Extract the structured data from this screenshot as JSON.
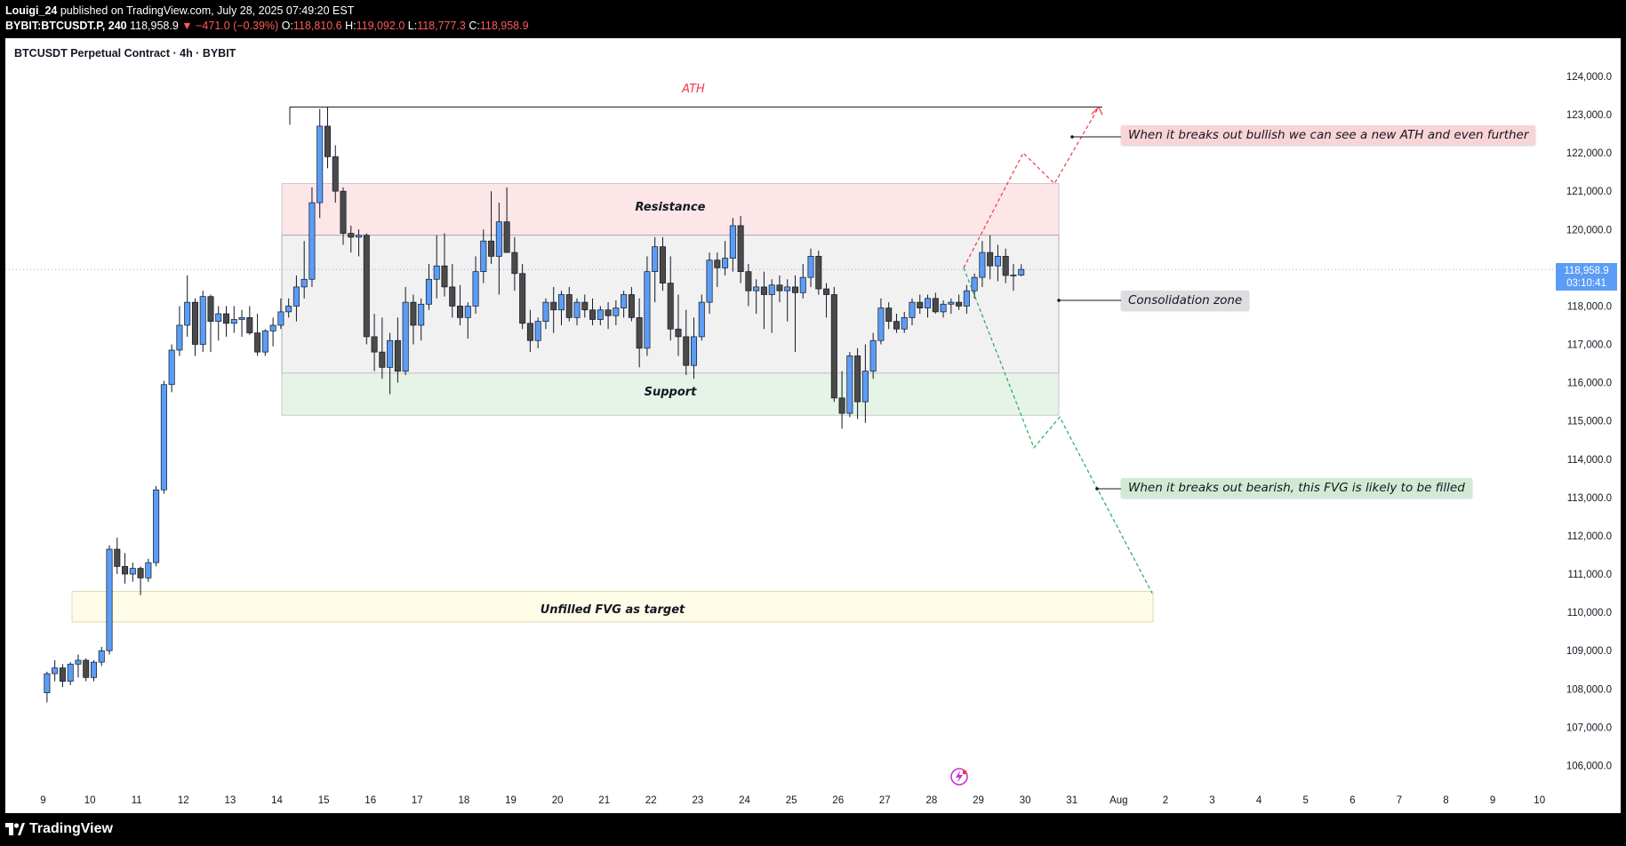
{
  "header": {
    "publisher": "Louigi_24",
    "published_text": "published on TradingView.com, July 28, 2025 07:49:20 EST",
    "symbol": "BYBIT:BTCUSDT.P, 240",
    "last": "118,958.9",
    "change": "▼ −471.0 (−0.39%)",
    "o_label": "O:",
    "o_value": "118,810.6",
    "h_label": "H:",
    "h_value": "119,092.0",
    "l_label": "L:",
    "l_value": "118,777.3",
    "c_label": "C:",
    "c_value": "118,958.9"
  },
  "chart_title": "BTCUSDT Perpetual Contract · 4h · BYBIT",
  "price_tag": {
    "price": "118,958.9",
    "countdown": "03:10:41"
  },
  "annotations": {
    "ath": "ATH",
    "resistance": "Resistance",
    "support": "Support",
    "fvg": "Unfilled FVG as target",
    "bullish_note": "When it breaks out bullish we can see a new ATH and even further",
    "consolidation_note": "Consolidation zone",
    "bearish_note": "When it breaks out bearish, this FVG is likely to be filled"
  },
  "footer": {
    "brand": "TradingView"
  },
  "colors": {
    "up": "#5b9cf6",
    "down": "#4a4a4a",
    "resistance_zone": "#fde6e7",
    "consolidation_zone": "#f1f1f1",
    "support_zone": "#e5f4e7",
    "fvg_zone": "#fefbe6",
    "bull_path": "#f23645",
    "bear_path": "#22ab5c"
  },
  "chart_data": {
    "type": "candlestick",
    "title": "BTCUSDT Perpetual Contract · 4h · BYBIT",
    "x_ticks": [
      "9",
      "10",
      "11",
      "12",
      "13",
      "14",
      "15",
      "16",
      "17",
      "18",
      "19",
      "20",
      "21",
      "22",
      "23",
      "24",
      "25",
      "26",
      "27",
      "28",
      "29",
      "30",
      "31",
      "Aug",
      "2",
      "3",
      "4",
      "5",
      "6",
      "7",
      "8",
      "9",
      "10"
    ],
    "y_ticks": [
      "106,000.0",
      "107,000.0",
      "108,000.0",
      "109,000.0",
      "110,000.0",
      "111,000.0",
      "112,000.0",
      "113,000.0",
      "114,000.0",
      "115,000.0",
      "116,000.0",
      "117,000.0",
      "118,000.0",
      "119,000.0",
      "120,000.0",
      "121,000.0",
      "122,000.0",
      "123,000.0",
      "124,000.0"
    ],
    "y_tick_values": [
      106000,
      107000,
      108000,
      109000,
      110000,
      111000,
      112000,
      113000,
      114000,
      115000,
      116000,
      117000,
      118000,
      119000,
      120000,
      121000,
      122000,
      123000,
      124000
    ],
    "ylim": [
      105500,
      124300
    ],
    "candles_start_day": "9",
    "candles_per_day": 6,
    "candles": [
      [
        107900,
        108450,
        107650,
        108400
      ],
      [
        108400,
        108750,
        108200,
        108550
      ],
      [
        108550,
        108650,
        108050,
        108200
      ],
      [
        108200,
        108700,
        108100,
        108650
      ],
      [
        108650,
        108900,
        108300,
        108750
      ],
      [
        108750,
        108800,
        108200,
        108300
      ],
      [
        108300,
        108750,
        108200,
        108700
      ],
      [
        108700,
        109100,
        108600,
        109000
      ],
      [
        109000,
        111750,
        108900,
        111650
      ],
      [
        111650,
        111950,
        111000,
        111200
      ],
      [
        111200,
        111550,
        110750,
        111000
      ],
      [
        111000,
        111300,
        110800,
        111150
      ],
      [
        111150,
        111200,
        110450,
        110900
      ],
      [
        110900,
        111400,
        110800,
        111300
      ],
      [
        111300,
        113300,
        111200,
        113200
      ],
      [
        113200,
        116050,
        113100,
        115950
      ],
      [
        115950,
        117000,
        115750,
        116850
      ],
      [
        116850,
        118000,
        116700,
        117500
      ],
      [
        117500,
        118800,
        117200,
        118100
      ],
      [
        118100,
        118200,
        116700,
        117000
      ],
      [
        117000,
        118400,
        116800,
        118250
      ],
      [
        118250,
        118300,
        116800,
        117600
      ],
      [
        117600,
        118000,
        117100,
        117800
      ],
      [
        117800,
        118000,
        117200,
        117550
      ],
      [
        117550,
        118000,
        117300,
        117650
      ],
      [
        117650,
        117900,
        117200,
        117700
      ],
      [
        117700,
        118000,
        117250,
        117300
      ],
      [
        117300,
        117800,
        116700,
        116800
      ],
      [
        116800,
        117400,
        116700,
        117350
      ],
      [
        117350,
        117700,
        116950,
        117500
      ],
      [
        117500,
        118200,
        117400,
        117850
      ],
      [
        117850,
        118200,
        117700,
        118000
      ],
      [
        118000,
        118800,
        117600,
        118500
      ],
      [
        118500,
        119700,
        118200,
        118700
      ],
      [
        118700,
        121100,
        118500,
        120700
      ],
      [
        120700,
        123150,
        120300,
        122700
      ],
      [
        122700,
        123200,
        121600,
        121900
      ],
      [
        121900,
        122200,
        120700,
        121000
      ],
      [
        121000,
        121100,
        119600,
        119900
      ],
      [
        119900,
        120100,
        119400,
        119800
      ],
      [
        119800,
        120000,
        119300,
        119850
      ],
      [
        119850,
        119900,
        117000,
        117200
      ],
      [
        117200,
        117800,
        116300,
        116800
      ],
      [
        116800,
        117700,
        116100,
        116400
      ],
      [
        116400,
        117300,
        115700,
        117100
      ],
      [
        117100,
        117700,
        116000,
        116300
      ],
      [
        116300,
        118500,
        116200,
        118100
      ],
      [
        118100,
        118300,
        117000,
        117500
      ],
      [
        117500,
        118200,
        117100,
        118050
      ],
      [
        118050,
        119100,
        117900,
        118700
      ],
      [
        118700,
        119850,
        118200,
        119050
      ],
      [
        119050,
        119900,
        118250,
        118500
      ],
      [
        118500,
        119100,
        117700,
        118000
      ],
      [
        118000,
        118550,
        117500,
        117700
      ],
      [
        117700,
        118100,
        117150,
        118000
      ],
      [
        118000,
        119300,
        117800,
        118900
      ],
      [
        118900,
        120000,
        118600,
        119700
      ],
      [
        119700,
        121000,
        119100,
        119300
      ],
      [
        119300,
        120700,
        118300,
        120200
      ],
      [
        120200,
        121100,
        119500,
        119400
      ],
      [
        119400,
        119800,
        118400,
        118850
      ],
      [
        118850,
        119100,
        117400,
        117550
      ],
      [
        117550,
        117900,
        116800,
        117100
      ],
      [
        117100,
        117700,
        116900,
        117600
      ],
      [
        117600,
        118200,
        117400,
        118100
      ],
      [
        118100,
        118500,
        117300,
        117900
      ],
      [
        117900,
        118400,
        117500,
        118300
      ],
      [
        118300,
        118500,
        117600,
        117700
      ],
      [
        117700,
        118200,
        117500,
        118100
      ],
      [
        118100,
        118300,
        117700,
        117900
      ],
      [
        117900,
        118200,
        117500,
        117650
      ],
      [
        117650,
        118000,
        117500,
        117900
      ],
      [
        117900,
        118100,
        117400,
        117750
      ],
      [
        117750,
        118150,
        117500,
        117950
      ],
      [
        117950,
        118400,
        117700,
        118300
      ],
      [
        118300,
        118500,
        117600,
        117700
      ],
      [
        117700,
        118200,
        116400,
        116900
      ],
      [
        116900,
        119300,
        116700,
        118900
      ],
      [
        118900,
        119800,
        118100,
        119550
      ],
      [
        119550,
        119800,
        118400,
        118600
      ],
      [
        118600,
        119300,
        117100,
        117400
      ],
      [
        117400,
        118300,
        116700,
        117200
      ],
      [
        117200,
        117900,
        116200,
        116450
      ],
      [
        116450,
        117700,
        116100,
        117200
      ],
      [
        117200,
        118300,
        117100,
        118100
      ],
      [
        118100,
        119400,
        117800,
        119200
      ],
      [
        119200,
        119400,
        118500,
        119000
      ],
      [
        119000,
        119700,
        118800,
        119250
      ],
      [
        119250,
        120300,
        118900,
        120100
      ],
      [
        120100,
        120350,
        118600,
        118900
      ],
      [
        118900,
        119100,
        118000,
        118400
      ],
      [
        118400,
        118700,
        117800,
        118500
      ],
      [
        118500,
        118900,
        117400,
        118300
      ],
      [
        118300,
        118700,
        117300,
        118550
      ],
      [
        118550,
        118800,
        118100,
        118400
      ],
      [
        118400,
        118700,
        117600,
        118500
      ],
      [
        118500,
        118800,
        116800,
        118350
      ],
      [
        118350,
        119100,
        118200,
        118750
      ],
      [
        118750,
        119500,
        118500,
        119300
      ],
      [
        119300,
        119450,
        118300,
        118450
      ],
      [
        118450,
        118600,
        117700,
        118300
      ],
      [
        118300,
        118500,
        115500,
        115600
      ],
      [
        115600,
        116300,
        114800,
        115200
      ],
      [
        115200,
        116800,
        115100,
        116700
      ],
      [
        116700,
        116900,
        115050,
        115500
      ],
      [
        115500,
        117000,
        114950,
        116300
      ],
      [
        116300,
        117300,
        116100,
        117100
      ],
      [
        117100,
        118200,
        117000,
        117950
      ],
      [
        117950,
        118100,
        117400,
        117600
      ],
      [
        117600,
        117800,
        117300,
        117400
      ],
      [
        117400,
        117850,
        117300,
        117700
      ],
      [
        117700,
        118200,
        117500,
        118100
      ],
      [
        118100,
        118300,
        117800,
        117950
      ],
      [
        117950,
        118300,
        117700,
        118200
      ],
      [
        118200,
        118350,
        117800,
        117850
      ],
      [
        117850,
        118150,
        117700,
        118050
      ],
      [
        118050,
        118200,
        117800,
        118100
      ],
      [
        118100,
        118300,
        117900,
        118000
      ],
      [
        118000,
        118550,
        117800,
        118400
      ],
      [
        118400,
        118850,
        118200,
        118750
      ],
      [
        118750,
        119700,
        118500,
        119400
      ],
      [
        119400,
        119850,
        118700,
        119050
      ],
      [
        119050,
        119600,
        118650,
        119300
      ],
      [
        119300,
        119500,
        118600,
        118800
      ],
      [
        118800,
        119100,
        118400,
        118810
      ],
      [
        118810.6,
        119092,
        118777.3,
        118958.9
      ]
    ],
    "annotations": {
      "ath_level": 123200,
      "resistance_zone": [
        119850,
        121200
      ],
      "consolidation_zone": [
        116250,
        119850
      ],
      "support_zone": [
        115150,
        116250
      ],
      "fvg_zone": [
        109750,
        110550
      ],
      "current_price": 118958.9,
      "bullish_path": [
        [
          119000,
          122000,
          121200,
          123200
        ]
      ],
      "bearish_path": [
        [
          119000,
          114300,
          115100,
          110500
        ]
      ]
    }
  }
}
